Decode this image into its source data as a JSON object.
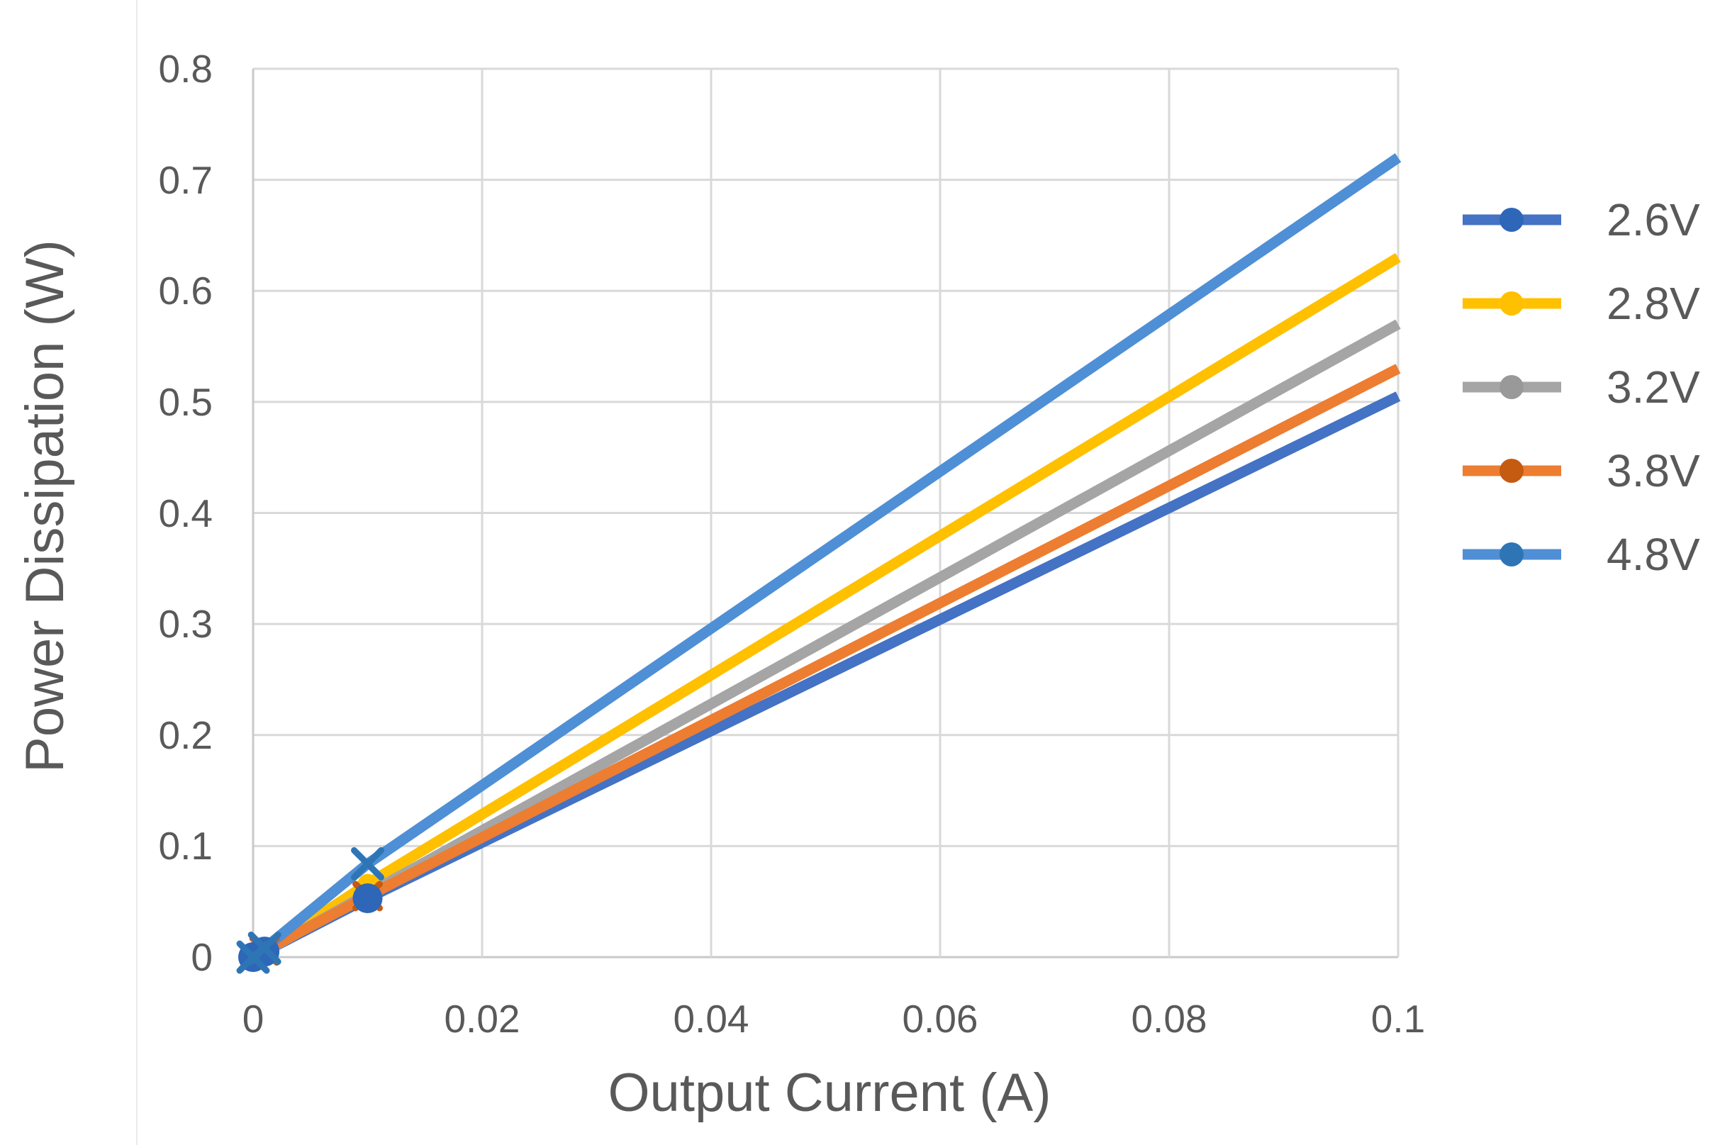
{
  "figure": {
    "background_color": "#FFFFFF",
    "page_edge_line_color": "#ECECEC"
  },
  "chart_data": {
    "type": "line",
    "title": "",
    "xlabel": "Output Current (A)",
    "ylabel": "Power Dissipation (W)",
    "xlim": [
      0,
      0.1
    ],
    "ylim": [
      0,
      0.8
    ],
    "grid": true,
    "gridline_color": "#D9D9D9",
    "axis_line_color": "#C9C9C9",
    "tick_label_color": "#595959",
    "axis_title_color": "#595959",
    "legend_position": "right",
    "legend_text_color": "#595959",
    "x_ticks": [
      {
        "value": 0,
        "label": "0"
      },
      {
        "value": 0.02,
        "label": "0.02"
      },
      {
        "value": 0.04,
        "label": "0.04"
      },
      {
        "value": 0.06,
        "label": "0.06"
      },
      {
        "value": 0.08,
        "label": "0.08"
      },
      {
        "value": 0.1,
        "label": "0.1"
      }
    ],
    "y_ticks": [
      {
        "value": 0,
        "label": "0"
      },
      {
        "value": 0.1,
        "label": "0.1"
      },
      {
        "value": 0.2,
        "label": "0.2"
      },
      {
        "value": 0.3,
        "label": "0.3"
      },
      {
        "value": 0.4,
        "label": "0.4"
      },
      {
        "value": 0.5,
        "label": "0.5"
      },
      {
        "value": 0.6,
        "label": "0.6"
      },
      {
        "value": 0.7,
        "label": "0.7"
      },
      {
        "value": 0.8,
        "label": "0.8"
      }
    ],
    "series": [
      {
        "name": "2.6V",
        "line_color": "#4472C4",
        "marker_color": "#2E66B8",
        "marker": "circle",
        "marker_size": 21,
        "points": [
          [
            0,
            0
          ],
          [
            0.001,
            0.005
          ],
          [
            0.01,
            0.053
          ],
          [
            0.1,
            0.505
          ]
        ],
        "markers_at": [
          0,
          0.001,
          0.01
        ]
      },
      {
        "name": "2.8V",
        "line_color": "#FFC000",
        "marker_color": "#FFC000",
        "marker": "circle",
        "marker_size": 14,
        "points": [
          [
            0,
            0
          ],
          [
            0.001,
            0.005
          ],
          [
            0.01,
            0.066
          ],
          [
            0.1,
            0.63
          ]
        ],
        "markers_at": [
          0,
          0.001,
          0.01
        ]
      },
      {
        "name": "3.2V",
        "line_color": "#A5A5A5",
        "marker_color": "#999999",
        "marker": "diamond",
        "marker_size": 14,
        "points": [
          [
            0,
            0
          ],
          [
            0.001,
            0.005
          ],
          [
            0.01,
            0.057
          ],
          [
            0.1,
            0.57
          ]
        ],
        "markers_at": [
          0,
          0.001,
          0.01
        ]
      },
      {
        "name": "3.8V",
        "line_color": "#ED7D31",
        "marker_color": "#C55A11",
        "marker": "x",
        "marker_size": 17,
        "points": [
          [
            0,
            0
          ],
          [
            0.001,
            0.006
          ],
          [
            0.01,
            0.055
          ],
          [
            0.1,
            0.53
          ]
        ],
        "markers_at": [
          0,
          0.001,
          0.01
        ]
      },
      {
        "name": "4.8V",
        "line_color": "#4F8FD5",
        "marker_color": "#2E75B6",
        "marker": "x",
        "marker_size": 19,
        "points": [
          [
            0,
            0
          ],
          [
            0.001,
            0.008
          ],
          [
            0.01,
            0.084
          ],
          [
            0.1,
            0.72
          ]
        ],
        "markers_at": [
          0,
          0.001,
          0.01
        ]
      }
    ],
    "marker_draw_order": [
      "2.8V",
      "3.2V",
      "3.8V",
      "2.6V",
      "4.8V"
    ]
  }
}
